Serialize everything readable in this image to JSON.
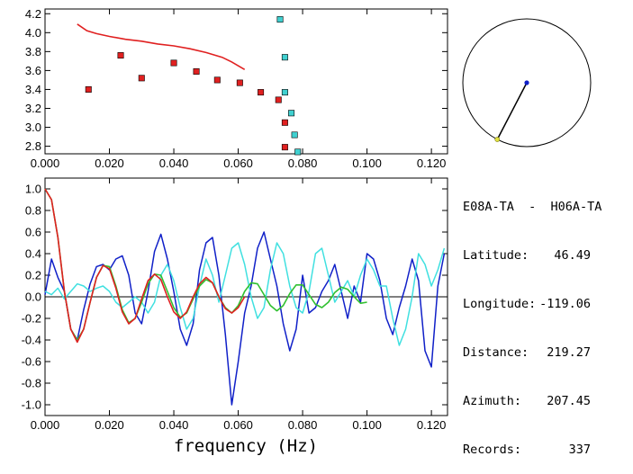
{
  "info": {
    "pair": "E08A-TA  -  H06A-TA",
    "latitude_label": "Latitude:",
    "latitude": "46.49",
    "longitude_label": "Longitude:",
    "longitude": "-119.06",
    "distance_label": "Distance:",
    "distance": "219.27",
    "azimuth_label": "Azimuth:",
    "azimuth": "207.45",
    "records_label": "Records:",
    "records": "337"
  },
  "compass": {
    "azimuth_deg": 207.45
  },
  "chart_data": [
    {
      "type": "scatter",
      "title": "",
      "xlabel": "",
      "ylabel": "",
      "xlim": [
        0.0,
        0.125
      ],
      "ylim": [
        2.72,
        4.25
      ],
      "x_ticks": [
        "0.000",
        "0.020",
        "0.040",
        "0.060",
        "0.080",
        "0.100",
        "0.120"
      ],
      "y_ticks": [
        "2.8",
        "3.0",
        "3.2",
        "3.4",
        "3.6",
        "3.8",
        "4.0",
        "4.2"
      ],
      "series": [
        {
          "type": "scatter",
          "color": "#e02020",
          "x": [
            0.0135,
            0.0235,
            0.03,
            0.04,
            0.047,
            0.0535,
            0.0605,
            0.067,
            0.0725,
            0.0745,
            0.0745
          ],
          "y": [
            3.4,
            3.76,
            3.52,
            3.68,
            3.59,
            3.5,
            3.47,
            3.37,
            3.29,
            3.05,
            2.79
          ]
        },
        {
          "type": "scatter",
          "color": "#40d0d0",
          "x": [
            0.073,
            0.0745,
            0.0745,
            0.0765,
            0.0775,
            0.0785
          ],
          "y": [
            4.14,
            3.74,
            3.37,
            3.15,
            2.92,
            2.74
          ]
        },
        {
          "type": "line",
          "color": "#e02020",
          "x": [
            0.01,
            0.013,
            0.016,
            0.02,
            0.025,
            0.03,
            0.035,
            0.04,
            0.045,
            0.05,
            0.055,
            0.058,
            0.062
          ],
          "y": [
            4.09,
            4.02,
            3.99,
            3.96,
            3.93,
            3.91,
            3.88,
            3.86,
            3.83,
            3.79,
            3.74,
            3.69,
            3.61
          ]
        }
      ]
    },
    {
      "type": "line",
      "title": "",
      "xlabel": "frequency (Hz)",
      "ylabel": "",
      "xlim": [
        0.0,
        0.125
      ],
      "ylim": [
        -1.1,
        1.1
      ],
      "x_ticks": [
        "0.000",
        "0.020",
        "0.040",
        "0.060",
        "0.080",
        "0.100",
        "0.120"
      ],
      "y_ticks": [
        "-1.0",
        "-0.8",
        "-0.6",
        "-0.4",
        "-0.2",
        "0.0",
        "0.2",
        "0.4",
        "0.6",
        "0.8",
        "1.0"
      ],
      "zero_line": true,
      "series": [
        {
          "color": "#1020c8",
          "x": [
            0.0,
            0.002,
            0.004,
            0.006,
            0.008,
            0.01,
            0.012,
            0.014,
            0.016,
            0.018,
            0.02,
            0.022,
            0.024,
            0.026,
            0.028,
            0.03,
            0.032,
            0.034,
            0.036,
            0.038,
            0.04,
            0.042,
            0.044,
            0.046,
            0.048,
            0.05,
            0.052,
            0.054,
            0.056,
            0.058,
            0.06,
            0.062,
            0.064,
            0.066,
            0.068,
            0.07,
            0.072,
            0.074,
            0.076,
            0.078,
            0.08,
            0.082,
            0.084,
            0.086,
            0.088,
            0.09,
            0.092,
            0.094,
            0.096,
            0.098,
            0.1,
            0.102,
            0.104,
            0.106,
            0.108,
            0.11,
            0.112,
            0.114,
            0.116,
            0.118,
            0.12,
            0.122,
            0.124
          ],
          "y": [
            0.02,
            0.35,
            0.18,
            0.05,
            -0.3,
            -0.4,
            -0.12,
            0.12,
            0.28,
            0.3,
            0.25,
            0.35,
            0.38,
            0.2,
            -0.15,
            -0.25,
            0.05,
            0.42,
            0.58,
            0.35,
            0.05,
            -0.3,
            -0.45,
            -0.25,
            0.25,
            0.5,
            0.55,
            0.2,
            -0.35,
            -1.0,
            -0.6,
            -0.15,
            0.1,
            0.45,
            0.6,
            0.35,
            0.1,
            -0.25,
            -0.5,
            -0.3,
            0.2,
            -0.15,
            -0.1,
            0.05,
            0.15,
            0.3,
            0.05,
            -0.2,
            0.1,
            -0.05,
            0.4,
            0.35,
            0.15,
            -0.2,
            -0.35,
            -0.1,
            0.1,
            0.35,
            0.15,
            -0.5,
            -0.65,
            0.1,
            0.4
          ]
        },
        {
          "color": "#40e0e0",
          "x": [
            0.0,
            0.002,
            0.004,
            0.006,
            0.008,
            0.01,
            0.012,
            0.014,
            0.016,
            0.018,
            0.02,
            0.022,
            0.024,
            0.026,
            0.028,
            0.03,
            0.032,
            0.034,
            0.036,
            0.038,
            0.04,
            0.042,
            0.044,
            0.046,
            0.048,
            0.05,
            0.052,
            0.054,
            0.056,
            0.058,
            0.06,
            0.062,
            0.064,
            0.066,
            0.068,
            0.07,
            0.072,
            0.074,
            0.076,
            0.078,
            0.08,
            0.082,
            0.084,
            0.086,
            0.088,
            0.09,
            0.092,
            0.094,
            0.096,
            0.098,
            0.1,
            0.102,
            0.104,
            0.106,
            0.108,
            0.11,
            0.112,
            0.114,
            0.116,
            0.118,
            0.12,
            0.122,
            0.124
          ],
          "y": [
            0.05,
            0.02,
            0.08,
            -0.02,
            0.05,
            0.12,
            0.1,
            0.05,
            0.08,
            0.1,
            0.05,
            -0.05,
            -0.1,
            -0.05,
            0.0,
            -0.05,
            -0.15,
            -0.05,
            0.2,
            0.3,
            0.15,
            -0.1,
            -0.3,
            -0.2,
            0.1,
            0.35,
            0.2,
            -0.05,
            0.2,
            0.45,
            0.5,
            0.3,
            0.0,
            -0.2,
            -0.1,
            0.25,
            0.5,
            0.4,
            0.1,
            -0.1,
            -0.15,
            0.05,
            0.4,
            0.45,
            0.2,
            -0.05,
            0.05,
            0.15,
            0.0,
            0.2,
            0.35,
            0.25,
            0.1,
            0.1,
            -0.2,
            -0.45,
            -0.3,
            0.0,
            0.4,
            0.3,
            0.1,
            0.25,
            0.45
          ]
        },
        {
          "color": "#30c030",
          "x": [
            0.0,
            0.002,
            0.004,
            0.006,
            0.008,
            0.01,
            0.012,
            0.014,
            0.016,
            0.018,
            0.02,
            0.022,
            0.024,
            0.026,
            0.028,
            0.03,
            0.032,
            0.034,
            0.036,
            0.038,
            0.04,
            0.042,
            0.044,
            0.046,
            0.048,
            0.05,
            0.052,
            0.054,
            0.056,
            0.058,
            0.06,
            0.062,
            0.064,
            0.066,
            0.068,
            0.07,
            0.072,
            0.074,
            0.076,
            0.078,
            0.08,
            0.082,
            0.084,
            0.086,
            0.088,
            0.09,
            0.092,
            0.094,
            0.096,
            0.098,
            0.1
          ],
          "y": [
            1.0,
            0.9,
            0.55,
            0.05,
            -0.3,
            -0.4,
            -0.3,
            -0.05,
            0.18,
            0.29,
            0.28,
            0.1,
            -0.12,
            -0.24,
            -0.2,
            -0.05,
            0.12,
            0.21,
            0.2,
            0.05,
            -0.1,
            -0.19,
            -0.15,
            -0.02,
            0.1,
            0.16,
            0.13,
            0.0,
            -0.1,
            -0.15,
            -0.08,
            0.05,
            0.13,
            0.12,
            0.02,
            -0.08,
            -0.13,
            -0.08,
            0.03,
            0.11,
            0.11,
            0.02,
            -0.07,
            -0.1,
            -0.05,
            0.04,
            0.09,
            0.07,
            0.0,
            -0.06,
            -0.05
          ]
        },
        {
          "color": "#e02020",
          "x": [
            0.0,
            0.002,
            0.004,
            0.006,
            0.008,
            0.01,
            0.012,
            0.014,
            0.016,
            0.018,
            0.02,
            0.022,
            0.024,
            0.026,
            0.028,
            0.03,
            0.032,
            0.034,
            0.036,
            0.038,
            0.04,
            0.042,
            0.044,
            0.046,
            0.048,
            0.05,
            0.052,
            0.054,
            0.056,
            0.058,
            0.06,
            0.062
          ],
          "y": [
            1.0,
            0.9,
            0.55,
            0.05,
            -0.3,
            -0.42,
            -0.3,
            -0.05,
            0.18,
            0.29,
            0.26,
            0.08,
            -0.14,
            -0.25,
            -0.2,
            -0.02,
            0.15,
            0.21,
            0.16,
            0.0,
            -0.14,
            -0.2,
            -0.14,
            0.0,
            0.12,
            0.18,
            0.13,
            0.0,
            -0.11,
            -0.15,
            -0.1,
            0.0
          ]
        }
      ]
    }
  ]
}
